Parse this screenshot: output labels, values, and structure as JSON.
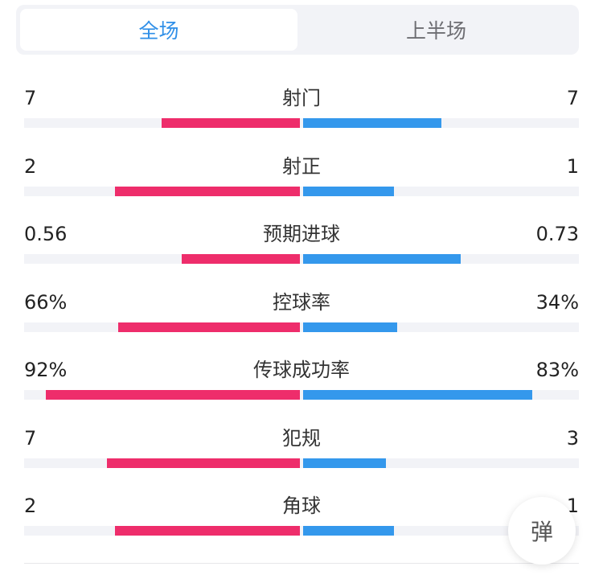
{
  "tabs": [
    {
      "label": "全场",
      "active": true
    },
    {
      "label": "上半场",
      "active": false
    }
  ],
  "colors": {
    "home": "#ee2d6b",
    "away": "#3498ec",
    "active_tab": "#2f8fe8"
  },
  "stats": [
    {
      "label": "射门",
      "home": "7",
      "away": "7",
      "home_fill": 0.5,
      "away_fill": 0.5
    },
    {
      "label": "射正",
      "home": "2",
      "away": "1",
      "home_fill": 0.67,
      "away_fill": 0.33
    },
    {
      "label": "预期进球",
      "home": "0.56",
      "away": "0.73",
      "home_fill": 0.43,
      "away_fill": 0.57
    },
    {
      "label": "控球率",
      "home": "66%",
      "away": "34%",
      "home_fill": 0.66,
      "away_fill": 0.34
    },
    {
      "label": "传球成功率",
      "home": "92%",
      "away": "83%",
      "home_fill": 0.92,
      "away_fill": 0.83
    },
    {
      "label": "犯规",
      "home": "7",
      "away": "3",
      "home_fill": 0.7,
      "away_fill": 0.3
    },
    {
      "label": "角球",
      "home": "2",
      "away": "1",
      "home_fill": 0.67,
      "away_fill": 0.33
    }
  ],
  "danmu_button": {
    "label": "弹"
  }
}
